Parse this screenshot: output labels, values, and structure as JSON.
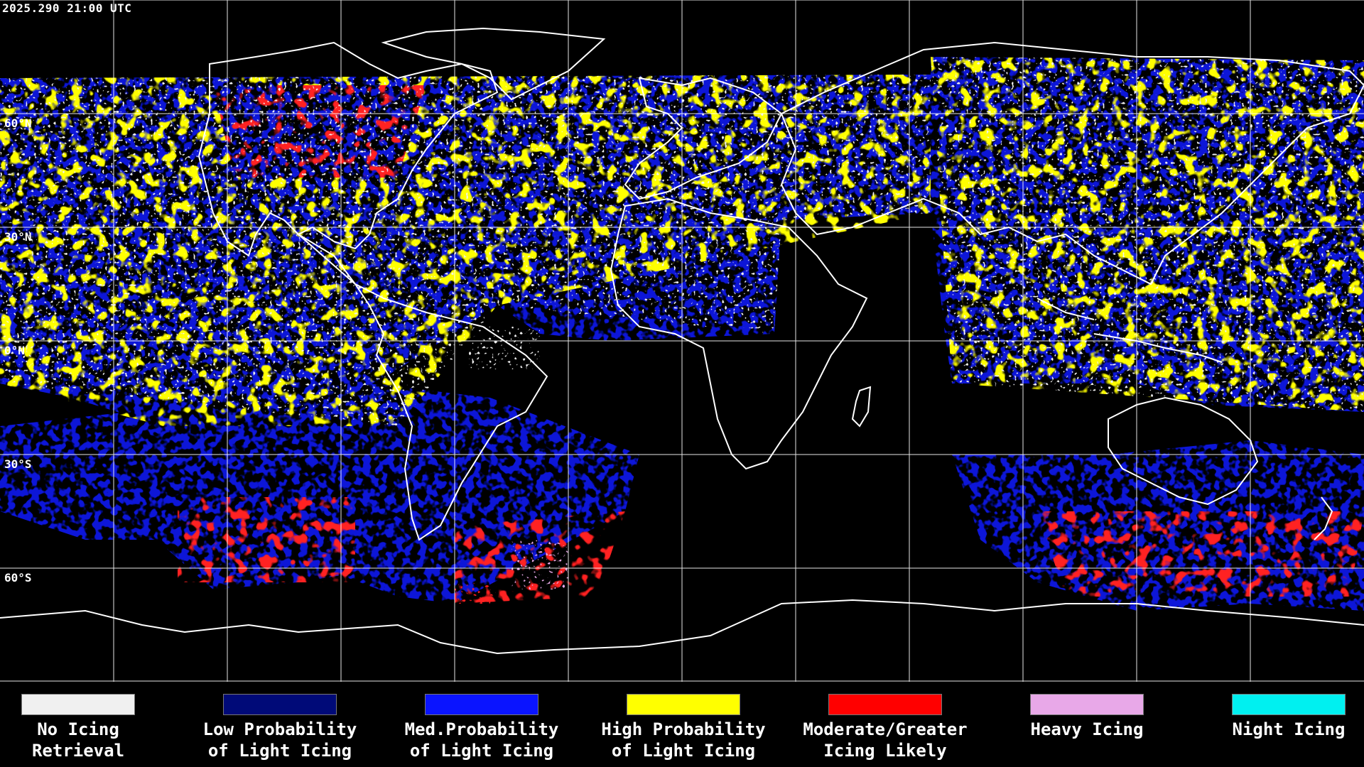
{
  "timestamp": "2025.290 21:00 UTC",
  "lat_labels": [
    "60°N",
    "30°N",
    "0°N",
    "30°S",
    "60°S"
  ],
  "legend": [
    {
      "line1": "No Icing",
      "line2": "Retrieval",
      "color": "#f0f0f0"
    },
    {
      "line1": "Low Probability",
      "line2": "of Light Icing",
      "color": "#000a78"
    },
    {
      "line1": "Med.Probability",
      "line2": "of Light Icing",
      "color": "#0a14ff"
    },
    {
      "line1": "High Probability",
      "line2": "of Light Icing",
      "color": "#ffff00"
    },
    {
      "line1": "Moderate/Greater",
      "line2": "Icing Likely",
      "color": "#ff0000"
    },
    {
      "line1": "Heavy Icing",
      "line2": "",
      "color": "#e8a8e8"
    },
    {
      "line1": "Night Icing",
      "line2": "",
      "color": "#00f0f0"
    }
  ],
  "icon_names": [
    "coastline-outline",
    "lat-lon-grid"
  ]
}
